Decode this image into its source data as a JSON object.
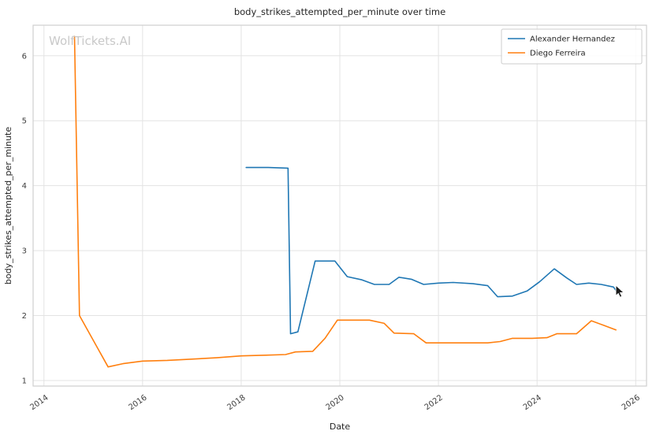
{
  "watermark": "WolfTickets.AI",
  "chart_data": {
    "type": "line",
    "title": "body_strikes_attempted_per_minute over time",
    "xlabel": "Date",
    "ylabel": "body_strikes_attempted_per_minute",
    "xlim": [
      2013.78,
      2026.22
    ],
    "ylim": [
      0.915,
      6.47
    ],
    "xticks": [
      2014,
      2016,
      2018,
      2020,
      2022,
      2024,
      2026
    ],
    "yticks": [
      1,
      2,
      3,
      4,
      5,
      6
    ],
    "grid": true,
    "legend_position": "upper right",
    "series": [
      {
        "name": "Alexander Hernandez",
        "color": "#1f77b4",
        "x": [
          2018.1,
          2018.55,
          2018.95,
          2019.0,
          2019.15,
          2019.5,
          2019.9,
          2020.15,
          2020.45,
          2020.7,
          2021.0,
          2021.2,
          2021.45,
          2021.7,
          2022.0,
          2022.3,
          2022.7,
          2023.0,
          2023.2,
          2023.5,
          2023.8,
          2024.05,
          2024.35,
          2024.6,
          2024.8,
          2025.05,
          2025.3,
          2025.55,
          2025.65
        ],
        "y": [
          4.28,
          4.28,
          4.27,
          1.72,
          1.75,
          2.84,
          2.84,
          2.6,
          2.55,
          2.48,
          2.48,
          2.59,
          2.56,
          2.48,
          2.5,
          2.51,
          2.49,
          2.46,
          2.29,
          2.3,
          2.38,
          2.52,
          2.72,
          2.58,
          2.48,
          2.5,
          2.48,
          2.44,
          2.33
        ]
      },
      {
        "name": "Diego Ferreira",
        "color": "#ff7f0e",
        "x": [
          2014.62,
          2014.72,
          2015.3,
          2015.6,
          2016.0,
          2016.5,
          2017.0,
          2017.5,
          2018.0,
          2018.5,
          2018.9,
          2019.1,
          2019.45,
          2019.7,
          2019.95,
          2020.3,
          2020.6,
          2020.9,
          2021.1,
          2021.5,
          2021.75,
          2022.2,
          2022.6,
          2023.0,
          2023.25,
          2023.5,
          2023.9,
          2024.2,
          2024.4,
          2024.8,
          2025.1,
          2025.35,
          2025.6
        ],
        "y": [
          6.3,
          2.0,
          1.21,
          1.26,
          1.3,
          1.31,
          1.33,
          1.35,
          1.38,
          1.39,
          1.4,
          1.44,
          1.45,
          1.65,
          1.93,
          1.93,
          1.93,
          1.88,
          1.73,
          1.72,
          1.58,
          1.58,
          1.58,
          1.58,
          1.6,
          1.65,
          1.65,
          1.66,
          1.72,
          1.72,
          1.92,
          1.85,
          1.78
        ]
      }
    ]
  }
}
